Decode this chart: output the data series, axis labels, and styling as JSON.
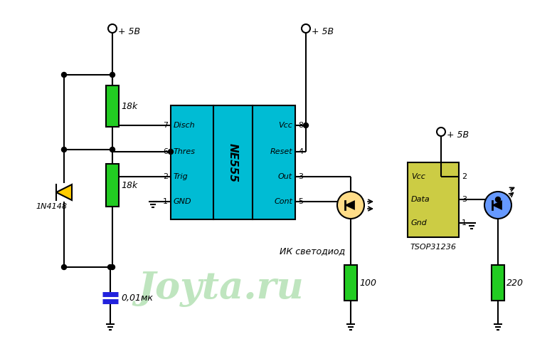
{
  "bg_color": "#ffffff",
  "line_color": "#000000",
  "resistor_color": "#22cc22",
  "ic_color": "#00bcd4",
  "tsop_color": "#cccc44",
  "cap_color": "#2222dd",
  "diode_color": "#ffcc00",
  "led_ir_color": "#ffdd88",
  "led_blue_color": "#6699ff",
  "watermark_color": "#aaddaa",
  "watermark_text": "Joyta.ru",
  "label_5v_1": "+ 5В",
  "label_5v_2": "+ 5В",
  "label_5v_3": "+ 5В",
  "label_r1": "18k",
  "label_r2": "18k",
  "label_r3": "100",
  "label_r4": "220",
  "label_c1": "0,01мк",
  "label_d1": "1N4148",
  "label_ik": "ИК светодиод",
  "label_tsop": "TSOP31236",
  "ic_label": "NE555",
  "pin_labels_left": [
    "Disch",
    "Thres",
    "Trig",
    "GND"
  ],
  "pin_labels_right": [
    "Vcc",
    "Reset",
    "Out",
    "Cont"
  ],
  "pin_nums_left": [
    "7",
    "6",
    "2",
    "1"
  ],
  "pin_nums_right": [
    "8",
    "4",
    "3",
    "5"
  ],
  "tsop_labels": [
    "Vcc",
    "Data",
    "Gnd"
  ],
  "tsop_nums": [
    "2",
    "3",
    "1"
  ]
}
